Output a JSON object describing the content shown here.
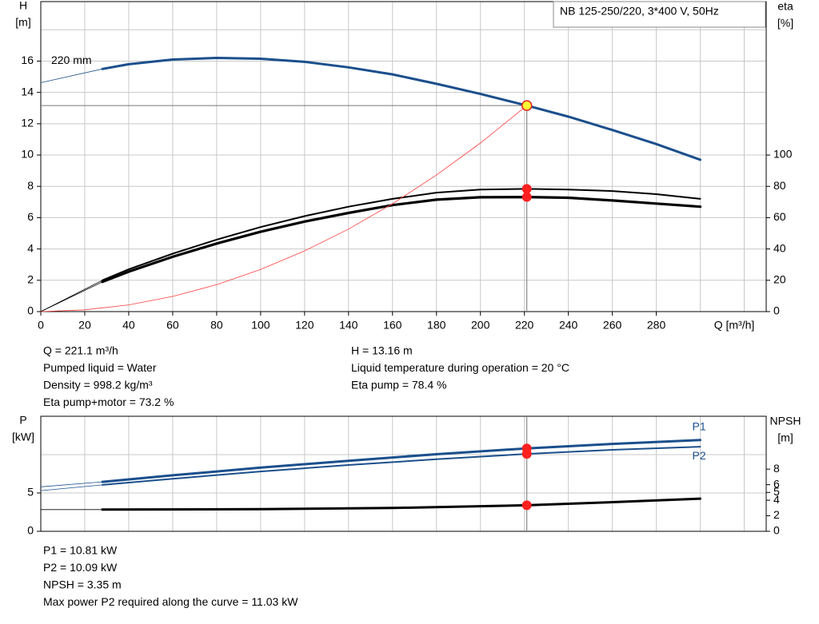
{
  "chart_data": [
    {
      "type": "line",
      "title": "NB 125-250/220, 3*400 V, 50Hz",
      "xlabel": "Q [m³/h]",
      "ylabel": [
        "H",
        "[m]"
      ],
      "y2label": [
        "eta",
        "[%]"
      ],
      "xlim": [
        0,
        330
      ],
      "xticks": [
        0,
        20,
        40,
        60,
        80,
        100,
        120,
        140,
        160,
        180,
        200,
        220,
        240,
        260,
        280
      ],
      "xgrid": [
        20,
        40,
        60,
        80,
        100,
        120,
        140,
        160,
        180,
        200,
        220,
        240,
        260,
        280,
        300,
        320
      ],
      "ylim": [
        0,
        19.8
      ],
      "yticks": [
        0,
        2,
        4,
        6,
        8,
        10,
        12,
        14,
        16
      ],
      "ygrid": [
        2,
        4,
        6,
        8,
        10,
        12,
        14,
        16,
        18
      ],
      "y2lim": [
        0,
        198
      ],
      "y2ticks": [
        0,
        20,
        40,
        60,
        80,
        100
      ],
      "series": [
        {
          "name": "220 mm",
          "color": "#1b4f8c",
          "line_width": 3,
          "x": [
            28,
            40,
            60,
            80,
            100,
            120,
            140,
            160,
            180,
            200,
            221.1,
            240,
            260,
            280,
            300
          ],
          "values": [
            15.5,
            15.8,
            16.1,
            16.2,
            16.15,
            15.95,
            15.6,
            15.15,
            14.55,
            13.9,
            13.16,
            12.45,
            11.6,
            10.7,
            9.7
          ],
          "extension_x": [
            0,
            28
          ],
          "extension_values": [
            14.62,
            15.5
          ]
        },
        {
          "color": "#000000",
          "axis": "y2",
          "line_width": 2,
          "x": [
            28,
            40,
            60,
            80,
            100,
            120,
            140,
            160,
            180,
            200,
            221.1,
            240,
            260,
            280,
            300
          ],
          "values": [
            20,
            27,
            37,
            46,
            54,
            61,
            67,
            72,
            76,
            78,
            78.4,
            78,
            77,
            75,
            72
          ],
          "extension_x": [
            0,
            28
          ],
          "extension_values": [
            0,
            20
          ]
        },
        {
          "color": "#000000",
          "axis": "y2",
          "line_width": 3.2,
          "x": [
            28,
            40,
            60,
            80,
            100,
            120,
            140,
            160,
            180,
            200,
            221.1,
            240,
            260,
            280,
            300
          ],
          "values": [
            19,
            25.5,
            35,
            43.5,
            51,
            57.5,
            63,
            68,
            71.5,
            73,
            73.2,
            72.7,
            71,
            69,
            67
          ],
          "extension_x": [
            0,
            28
          ],
          "extension_values": [
            0,
            19
          ]
        },
        {
          "color": "#ff4040",
          "line_width": 0.8,
          "x": [
            0,
            20,
            40,
            60,
            80,
            100,
            120,
            140,
            160,
            180,
            200,
            221.1
          ],
          "values": [
            0,
            0.11,
            0.43,
            0.97,
            1.72,
            2.69,
            3.88,
            5.27,
            6.89,
            8.72,
            10.77,
            13.16
          ]
        }
      ],
      "operating_point": {
        "x": 221.1,
        "y": 13.16,
        "y2": [
          78.4,
          73.2
        ]
      },
      "info_left": [
        "Q = 221.1 m³/h",
        "Pumped liquid = Water",
        "Density = 998.2 kg/m³",
        "Eta pump+motor = 73.2 %"
      ],
      "info_right": [
        "H = 13.16 m",
        "Liquid temperature during operation = 20 °C",
        "Eta pump = 78.4 %"
      ]
    },
    {
      "type": "line",
      "ylabel": [
        "P",
        "[kW]"
      ],
      "y2label": [
        "NPSH",
        "[m]"
      ],
      "xlim": [
        0,
        330
      ],
      "xgrid": [
        20,
        40,
        60,
        80,
        100,
        120,
        140,
        160,
        180,
        200,
        220,
        240,
        260,
        280,
        300,
        320
      ],
      "ylim": [
        0,
        15
      ],
      "yticks": [
        0,
        5
      ],
      "ygrid": [
        5,
        10
      ],
      "y2lim": [
        0,
        14.8
      ],
      "y2ticks": [
        0,
        2,
        4,
        5,
        6,
        8
      ],
      "series": [
        {
          "name": "P1",
          "color": "#1b4f8c",
          "line_width": 3,
          "x": [
            28,
            60,
            100,
            140,
            180,
            221.1,
            260,
            300
          ],
          "values": [
            6.45,
            7.3,
            8.3,
            9.2,
            10.05,
            10.81,
            11.4,
            11.9
          ],
          "extension_x": [
            0,
            28
          ],
          "extension_values": [
            5.8,
            6.45
          ]
        },
        {
          "name": "P2",
          "color": "#1b4f8c",
          "line_width": 2,
          "x": [
            28,
            60,
            100,
            140,
            180,
            221.1,
            260,
            300
          ],
          "values": [
            6.05,
            6.85,
            7.8,
            8.65,
            9.4,
            10.09,
            10.62,
            11.03
          ],
          "extension_x": [
            0,
            28
          ],
          "extension_values": [
            5.3,
            6.05
          ]
        },
        {
          "color": "#000000",
          "axis": "y2",
          "line_width": 3,
          "x": [
            28,
            100,
            160,
            221.1,
            260,
            300
          ],
          "values": [
            2.8,
            2.85,
            3.0,
            3.35,
            3.75,
            4.2
          ],
          "extension_x": [
            0,
            28
          ],
          "extension_values": [
            2.8,
            2.8
          ]
        }
      ],
      "operating_point": {
        "x": 221.1,
        "y": [
          10.81,
          10.09
        ],
        "y2": 3.35
      },
      "info": [
        "P1 = 10.81 kW",
        "P2 = 10.09 kW",
        "NPSH = 3.35 m",
        "Max power P2 required along the curve = 11.03 kW"
      ]
    }
  ]
}
